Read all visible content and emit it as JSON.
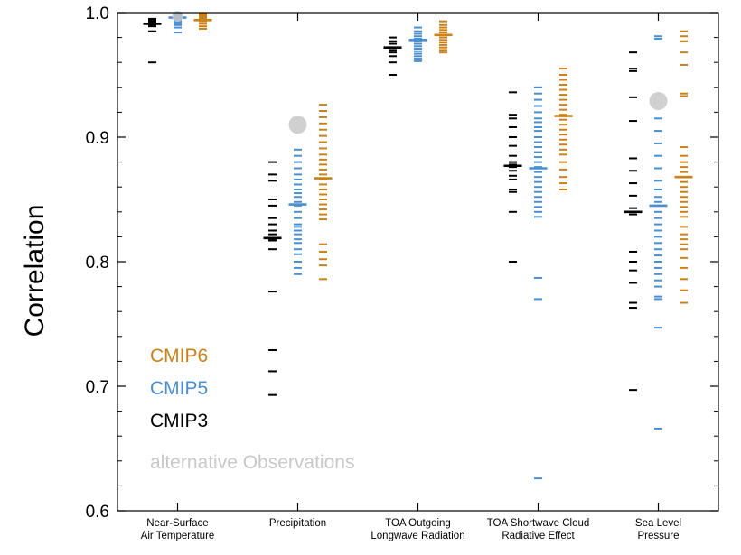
{
  "chart_data": {
    "type": "scatter",
    "ylabel": "Correlation",
    "ylim": [
      0.6,
      1.0
    ],
    "yticks": [
      {
        "value": 0.6,
        "label": "0.6"
      },
      {
        "value": 0.7,
        "label": "0.7"
      },
      {
        "value": 0.8,
        "label": "0.8"
      },
      {
        "value": 0.9,
        "label": "0.9"
      },
      {
        "value": 1.0,
        "label": "1.0"
      }
    ],
    "categories": [
      {
        "line1": "Near-Surface",
        "line2": "Air Temperature"
      },
      {
        "line1": "Precipitation",
        "line2": ""
      },
      {
        "line1": "TOA Outgoing",
        "line2": "Longwave Radiation"
      },
      {
        "line1": "TOA Shortwave Cloud",
        "line2": "Radiative Effect"
      },
      {
        "line1": "Sea Level",
        "line2": "Pressure"
      }
    ],
    "series": [
      {
        "name": "CMIP3",
        "color": "#000000",
        "models": [
          [
            0.995,
            0.994,
            0.993,
            0.992,
            0.991,
            0.99,
            0.989,
            0.985,
            0.96
          ],
          [
            0.88,
            0.87,
            0.865,
            0.85,
            0.845,
            0.835,
            0.83,
            0.825,
            0.822,
            0.818,
            0.817,
            0.81,
            0.776,
            0.729,
            0.712,
            0.693
          ],
          [
            0.98,
            0.977,
            0.975,
            0.972,
            0.97,
            0.968,
            0.965,
            0.96,
            0.95
          ],
          [
            0.936,
            0.918,
            0.915,
            0.908,
            0.9,
            0.893,
            0.885,
            0.88,
            0.878,
            0.876,
            0.873,
            0.869,
            0.866,
            0.858,
            0.856,
            0.84,
            0.8
          ],
          [
            0.968,
            0.955,
            0.953,
            0.932,
            0.913,
            0.883,
            0.873,
            0.863,
            0.853,
            0.843,
            0.838,
            0.808,
            0.8,
            0.793,
            0.783,
            0.767,
            0.763,
            0.697
          ]
        ],
        "mean": [
          0.991,
          0.819,
          0.972,
          0.877,
          0.84
        ]
      },
      {
        "name": "CMIP5",
        "color": "#4b8fd0",
        "models": [
          [
            0.999,
            0.998,
            0.997,
            0.996,
            0.995,
            0.994,
            0.993,
            0.992,
            0.991,
            0.99,
            0.988,
            0.984
          ],
          [
            0.89,
            0.885,
            0.88,
            0.875,
            0.87,
            0.866,
            0.862,
            0.858,
            0.855,
            0.852,
            0.848,
            0.845,
            0.84,
            0.835,
            0.83,
            0.828,
            0.825,
            0.822,
            0.818,
            0.815,
            0.81,
            0.806,
            0.8,
            0.795,
            0.79
          ],
          [
            0.988,
            0.985,
            0.983,
            0.981,
            0.979,
            0.977,
            0.975,
            0.973,
            0.971,
            0.969,
            0.967,
            0.965,
            0.963,
            0.961
          ],
          [
            0.94,
            0.935,
            0.93,
            0.925,
            0.92,
            0.915,
            0.912,
            0.908,
            0.905,
            0.9,
            0.896,
            0.892,
            0.888,
            0.884,
            0.88,
            0.876,
            0.872,
            0.868,
            0.864,
            0.86,
            0.856,
            0.852,
            0.848,
            0.844,
            0.84,
            0.836,
            0.787,
            0.77,
            0.626
          ],
          [
            0.981,
            0.979,
            0.915,
            0.905,
            0.895,
            0.885,
            0.875,
            0.865,
            0.858,
            0.852,
            0.848,
            0.845,
            0.84,
            0.835,
            0.83,
            0.825,
            0.82,
            0.815,
            0.81,
            0.805,
            0.8,
            0.795,
            0.79,
            0.785,
            0.78,
            0.772,
            0.77,
            0.747,
            0.666
          ]
        ],
        "mean": [
          0.996,
          0.846,
          0.978,
          0.875,
          0.845
        ]
      },
      {
        "name": "CMIP6",
        "color": "#c9821a",
        "models": [
          [
            0.999,
            0.998,
            0.997,
            0.996,
            0.995,
            0.994,
            0.993,
            0.991,
            0.989,
            0.987
          ],
          [
            0.926,
            0.921,
            0.916,
            0.911,
            0.906,
            0.901,
            0.896,
            0.891,
            0.886,
            0.882,
            0.878,
            0.874,
            0.87,
            0.866,
            0.862,
            0.858,
            0.854,
            0.85,
            0.846,
            0.842,
            0.838,
            0.834,
            0.814,
            0.808,
            0.802,
            0.797,
            0.786
          ],
          [
            0.993,
            0.99,
            0.988,
            0.986,
            0.984,
            0.982,
            0.98,
            0.978,
            0.976,
            0.974,
            0.972,
            0.97,
            0.968
          ],
          [
            0.955,
            0.95,
            0.946,
            0.942,
            0.938,
            0.934,
            0.93,
            0.926,
            0.922,
            0.918,
            0.914,
            0.91,
            0.906,
            0.902,
            0.898,
            0.894,
            0.89,
            0.886,
            0.88,
            0.874,
            0.868,
            0.863,
            0.858
          ],
          [
            0.985,
            0.981,
            0.977,
            0.968,
            0.958,
            0.935,
            0.933,
            0.892,
            0.885,
            0.88,
            0.876,
            0.872,
            0.868,
            0.864,
            0.86,
            0.856,
            0.852,
            0.848,
            0.844,
            0.84,
            0.836,
            0.828,
            0.822,
            0.818,
            0.814,
            0.81,
            0.803,
            0.795,
            0.786,
            0.777,
            0.767
          ]
        ],
        "mean": [
          0.994,
          0.867,
          0.982,
          0.917,
          0.868
        ]
      }
    ],
    "alternative_observations": {
      "name": "alternative Observations",
      "color": "#c8c8c8",
      "values": [
        0.997,
        0.91,
        null,
        null,
        0.929
      ]
    },
    "legend": [
      {
        "label": "CMIP6",
        "color": "#c9821a"
      },
      {
        "label": "CMIP5",
        "color": "#4b8fd0"
      },
      {
        "label": "CMIP3",
        "color": "#000000"
      },
      {
        "label": "alternative Observations",
        "color": "#c8c8c8"
      }
    ],
    "legend_position": "bottom-left"
  }
}
